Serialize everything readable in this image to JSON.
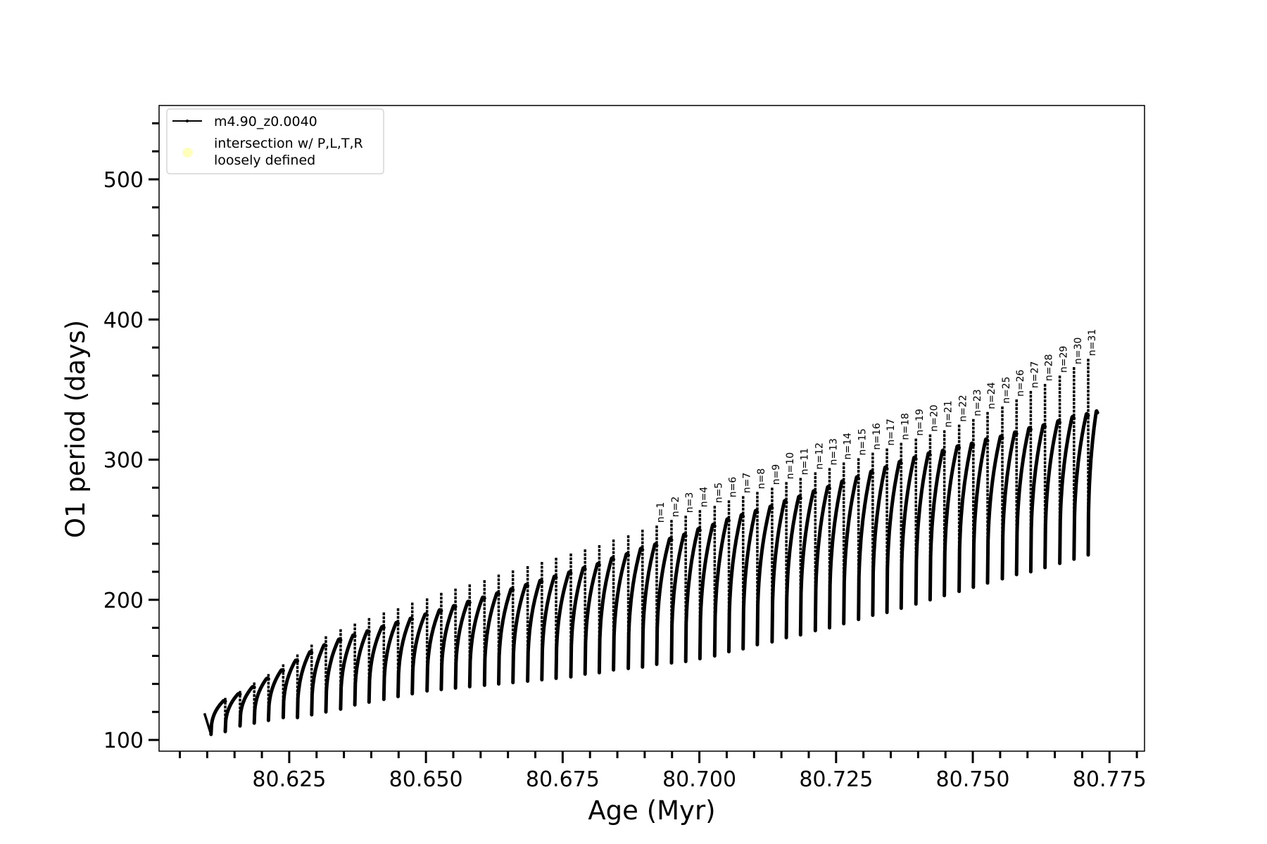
{
  "chart_data": {
    "type": "line",
    "xlabel": "Age (Myr)",
    "ylabel": "O1 period (days)",
    "xlim": [
      80.6012,
      80.7814
    ],
    "ylim": [
      92.0,
      552.7
    ],
    "xticks": [
      80.625,
      80.65,
      80.675,
      80.7,
      80.725,
      80.75,
      80.775
    ],
    "xtick_labels": [
      "80.625",
      "80.650",
      "80.675",
      "80.700",
      "80.725",
      "80.750",
      "80.775"
    ],
    "x_minor_step": 0.005,
    "yticks": [
      100,
      200,
      300,
      400,
      500
    ],
    "ytick_labels": [
      "100",
      "200",
      "300",
      "400",
      "500"
    ],
    "y_minor_step": 20,
    "grid": false,
    "legend": {
      "placement": "upper-left",
      "entries": [
        {
          "label": "m4.90_z0.0040",
          "marker": "line-with-dots",
          "color": "#000000"
        },
        {
          "label_lines": [
            "intersection w/ P,L,T,R",
            "loosely defined"
          ],
          "marker": "circle",
          "color": "#ffffb3"
        }
      ]
    },
    "series": [
      {
        "name": "m4.90_z0.0040",
        "color": "#000000",
        "cycle_drop_age": [
          80.6107,
          80.6133,
          80.616,
          80.6186,
          80.6212,
          80.6239,
          80.6265,
          80.6291,
          80.6317,
          80.6344,
          80.637,
          80.6396,
          80.6423,
          80.6449,
          80.6475,
          80.6502,
          80.6528,
          80.6554,
          80.658,
          80.6607,
          80.6633,
          80.6659,
          80.6686,
          80.6712,
          80.6738,
          80.6765,
          80.6791,
          80.6817,
          80.6843,
          80.687,
          80.6896,
          80.6922,
          80.6949,
          80.6975,
          80.7001,
          80.7028,
          80.7054,
          80.708,
          80.7106,
          80.7133,
          80.7159,
          80.7185,
          80.7212,
          80.7238,
          80.7264,
          80.7291,
          80.7317,
          80.7343,
          80.7369,
          80.7396,
          80.7422,
          80.7448,
          80.7475,
          80.7501,
          80.7527,
          80.7554,
          80.758,
          80.7606,
          80.7632,
          80.7659,
          80.7685,
          80.7711
        ],
        "cycle_spike_top": [
          119,
          130,
          135,
          141,
          147,
          154,
          161,
          168,
          174,
          179,
          183,
          187,
          191,
          194,
          198,
          201,
          205,
          208,
          211,
          214,
          218,
          221,
          224,
          227,
          230,
          233,
          236,
          239,
          243,
          246,
          250,
          253,
          257,
          260,
          264,
          267,
          271,
          274,
          277,
          280,
          284,
          287,
          291,
          294,
          298,
          301,
          305,
          308,
          312,
          315,
          318,
          321,
          325,
          329,
          334,
          338,
          343,
          349,
          354,
          360,
          366,
          372
        ],
        "cycle_minimum": [
          104,
          106,
          110,
          112,
          114,
          116,
          116,
          118,
          120,
          122,
          125,
          127,
          129,
          131,
          133,
          135,
          136,
          137,
          138,
          139,
          140,
          141,
          142,
          143,
          144,
          145,
          147,
          148,
          150,
          151,
          152,
          154,
          155,
          156,
          158,
          160,
          163,
          165,
          168,
          170,
          173,
          175,
          178,
          180,
          183,
          186,
          189,
          191,
          194,
          197,
          200,
          203,
          206,
          209,
          212,
          215,
          218,
          220,
          223,
          226,
          229,
          232
        ],
        "cycle_peak": [
          128,
          133,
          138,
          144,
          150,
          157,
          163,
          168,
          172,
          175,
          178,
          181,
          184,
          187,
          190,
          193,
          196,
          199,
          202,
          205,
          208,
          211,
          214,
          217,
          220,
          223,
          226,
          230,
          233,
          237,
          240,
          244,
          247,
          251,
          254,
          258,
          261,
          264,
          267,
          271,
          274,
          278,
          281,
          285,
          288,
          292,
          295,
          299,
          302,
          305,
          307,
          310,
          312,
          315,
          317,
          320,
          323,
          325,
          328,
          331,
          333,
          335
        ],
        "start_age": 80.6095,
        "end_age": 80.7728
      }
    ],
    "annotations": [
      {
        "text": "n=1",
        "x": 80.6922,
        "y": 253
      },
      {
        "text": "n=2",
        "x": 80.6949,
        "y": 257
      },
      {
        "text": "n=3",
        "x": 80.6975,
        "y": 260
      },
      {
        "text": "n=4",
        "x": 80.7001,
        "y": 264
      },
      {
        "text": "n=5",
        "x": 80.7028,
        "y": 267
      },
      {
        "text": "n=6",
        "x": 80.7054,
        "y": 271
      },
      {
        "text": "n=7",
        "x": 80.708,
        "y": 274
      },
      {
        "text": "n=8",
        "x": 80.7106,
        "y": 277
      },
      {
        "text": "n=9",
        "x": 80.7133,
        "y": 280
      },
      {
        "text": "n=10",
        "x": 80.7159,
        "y": 284
      },
      {
        "text": "n=11",
        "x": 80.7185,
        "y": 287
      },
      {
        "text": "n=12",
        "x": 80.7212,
        "y": 291
      },
      {
        "text": "n=13",
        "x": 80.7238,
        "y": 294
      },
      {
        "text": "n=14",
        "x": 80.7264,
        "y": 298
      },
      {
        "text": "n=15",
        "x": 80.7291,
        "y": 301
      },
      {
        "text": "n=16",
        "x": 80.7317,
        "y": 305
      },
      {
        "text": "n=17",
        "x": 80.7343,
        "y": 308
      },
      {
        "text": "n=18",
        "x": 80.7369,
        "y": 312
      },
      {
        "text": "n=19",
        "x": 80.7396,
        "y": 315
      },
      {
        "text": "n=20",
        "x": 80.7422,
        "y": 318
      },
      {
        "text": "n=21",
        "x": 80.7448,
        "y": 321
      },
      {
        "text": "n=22",
        "x": 80.7475,
        "y": 325
      },
      {
        "text": "n=23",
        "x": 80.7501,
        "y": 329
      },
      {
        "text": "n=24",
        "x": 80.7527,
        "y": 334
      },
      {
        "text": "n=25",
        "x": 80.7554,
        "y": 338
      },
      {
        "text": "n=26",
        "x": 80.758,
        "y": 343
      },
      {
        "text": "n=27",
        "x": 80.7606,
        "y": 349
      },
      {
        "text": "n=28",
        "x": 80.7632,
        "y": 354
      },
      {
        "text": "n=29",
        "x": 80.7659,
        "y": 360
      },
      {
        "text": "n=30",
        "x": 80.7685,
        "y": 366
      },
      {
        "text": "n=31",
        "x": 80.7711,
        "y": 372
      }
    ]
  }
}
